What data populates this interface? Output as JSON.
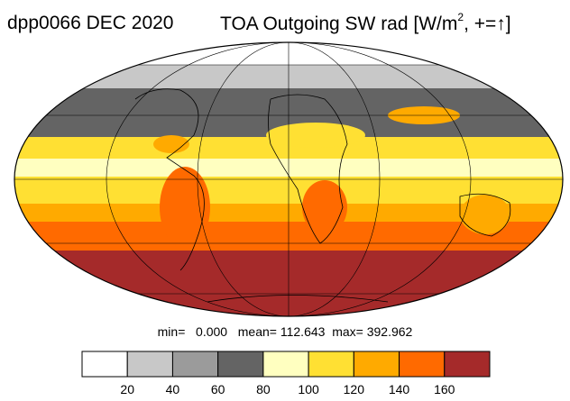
{
  "title": {
    "left": "dpp0066 DEC 2020",
    "right_prefix": "TOA Outgoing SW rad [W/m",
    "right_exp": "2",
    "right_suffix": ", +=",
    "arrow": "↑",
    "right_close": "]"
  },
  "stats": {
    "min_label": "min=",
    "min_value": "0.000",
    "mean_label": "mean=",
    "mean_value": "112.643",
    "max_label": "max=",
    "max_value": "392.962"
  },
  "chart_data": {
    "type": "heatmap",
    "projection": "mollweide",
    "grid": true,
    "colorbar": {
      "colors": [
        "#ffffff",
        "#c8c8c8",
        "#9b9b9b",
        "#646464",
        "#ffffc0",
        "#ffe033",
        "#ffaa00",
        "#ff6a00",
        "#a52a2a"
      ],
      "ticks": [
        20,
        40,
        60,
        80,
        100,
        120,
        140,
        160
      ],
      "tick_labels": [
        "20",
        "40",
        "60",
        "80",
        "100",
        "120",
        "140",
        "160"
      ]
    }
  }
}
